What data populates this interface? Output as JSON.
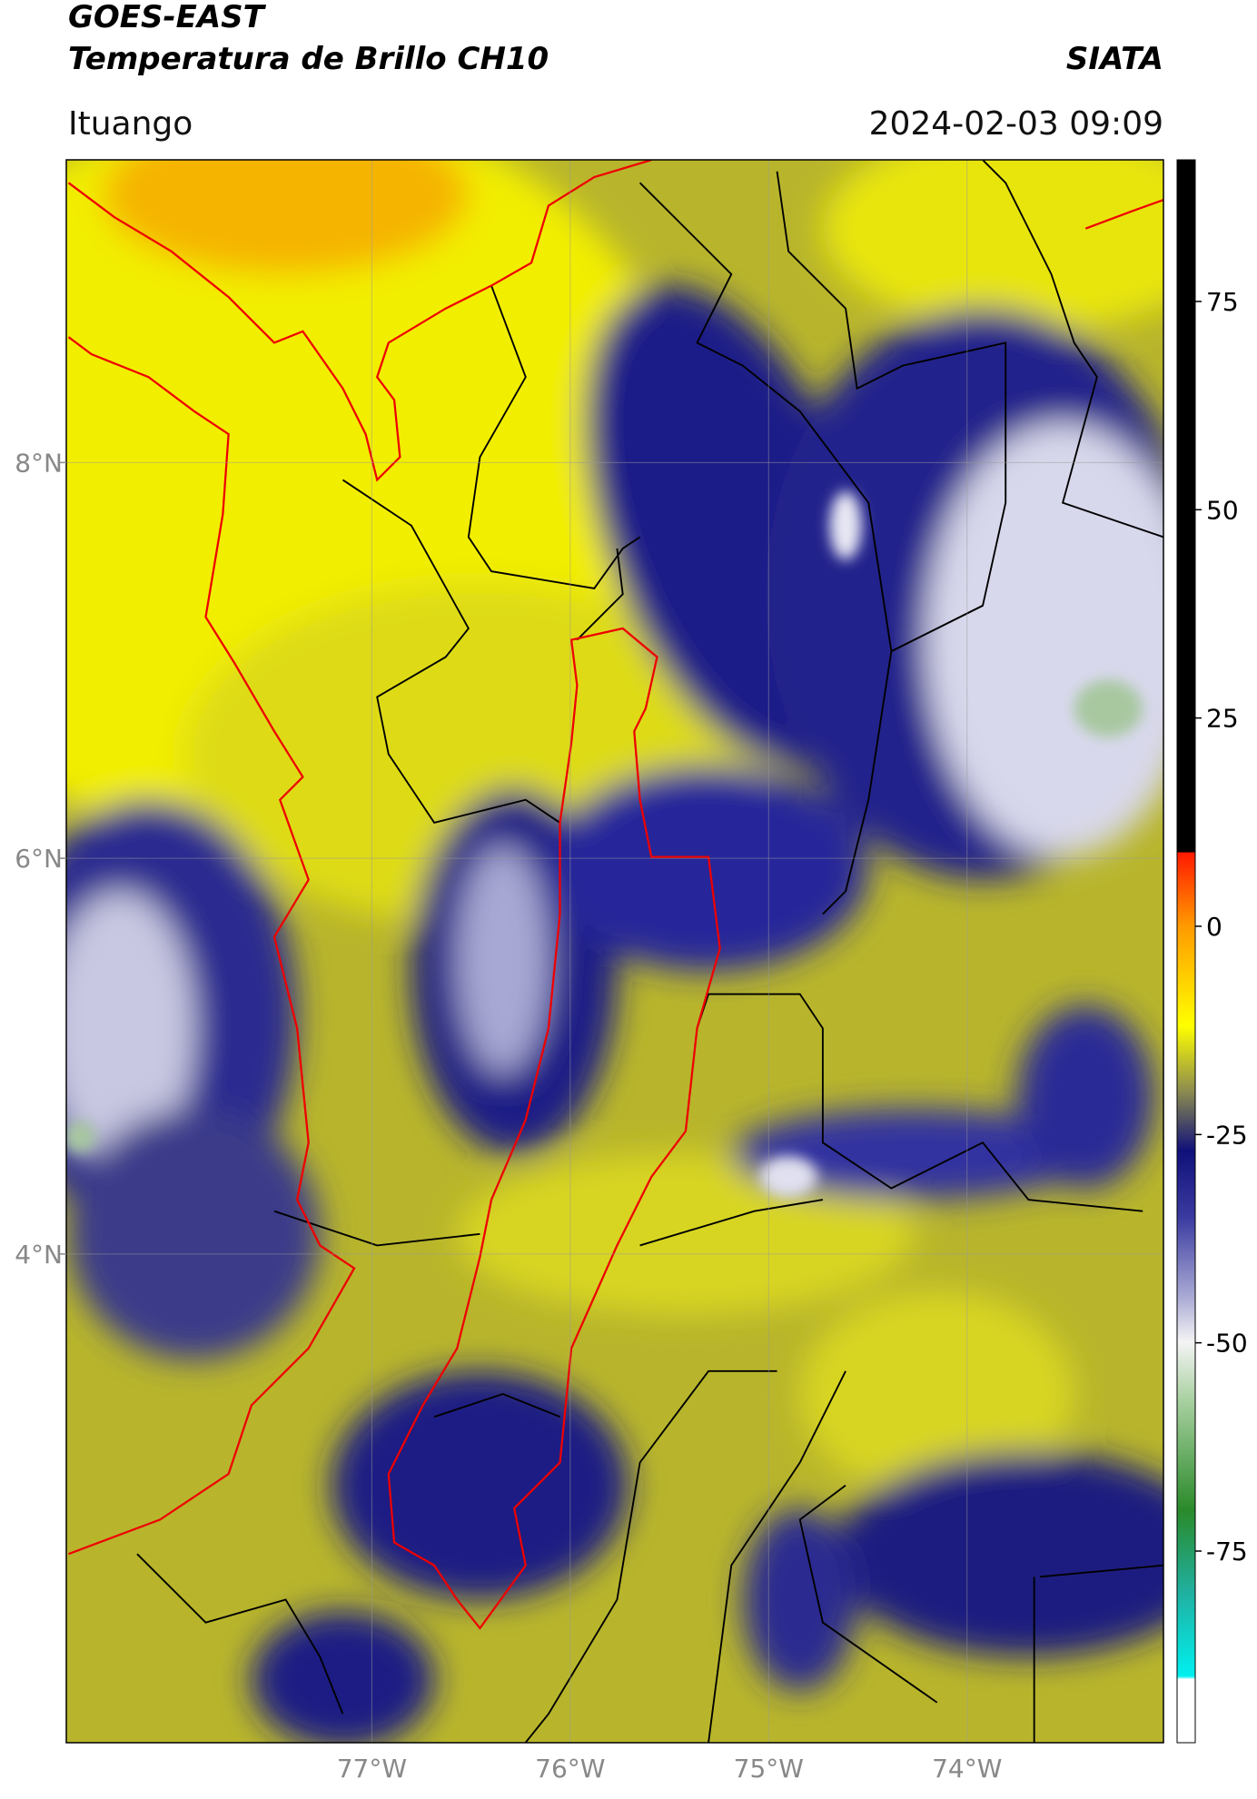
{
  "header": {
    "title": "GOES-EAST",
    "subtitle": "Temperatura de Brillo CH10",
    "source": "SIATA",
    "region": "Ituango",
    "timestamp": "2024-02-03 09:09"
  },
  "map": {
    "xlim": [
      -78.54,
      -73.01
    ],
    "ylim": [
      1.53,
      9.53
    ],
    "xticks": [
      {
        "value": -77,
        "label": "77°W"
      },
      {
        "value": -76,
        "label": "76°W"
      },
      {
        "value": -75,
        "label": "75°W"
      },
      {
        "value": -74,
        "label": "74°W"
      }
    ],
    "yticks": [
      {
        "value": 8,
        "label": "8°N"
      },
      {
        "value": 6,
        "label": "6°N"
      },
      {
        "value": 4,
        "label": "4°N"
      }
    ],
    "grid": true
  },
  "colorbar": {
    "lim": [
      -98,
      92
    ],
    "ticks": [
      75,
      50,
      25,
      0,
      -25,
      -50,
      -75
    ]
  }
}
